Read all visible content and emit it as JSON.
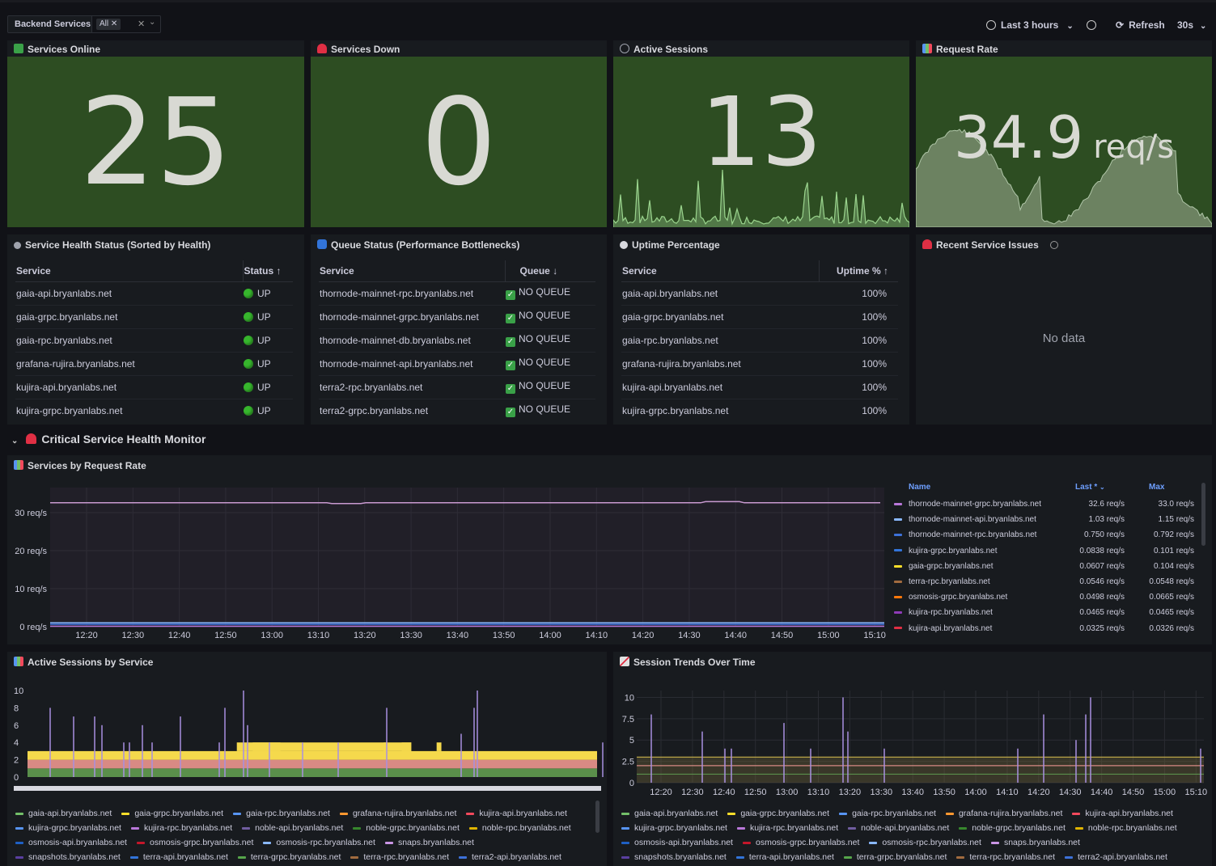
{
  "topbar": {
    "variable_label": "Backend Services",
    "variable_value": "All",
    "time_range": "Last 3 hours",
    "refresh_label": "Refresh",
    "refresh_interval": "30s"
  },
  "stats": [
    {
      "title": "Services Online",
      "value": "25",
      "unit": "",
      "icon": "check-icon",
      "icon_color": "#3aa148"
    },
    {
      "title": "Services Down",
      "value": "0",
      "unit": "",
      "icon": "siren-icon",
      "icon_color": "#e02f44"
    },
    {
      "title": "Active Sessions",
      "value": "13",
      "unit": "",
      "icon": "link-icon",
      "icon_color": "#9fa3ad"
    },
    {
      "title": "Request Rate",
      "value": "34.9",
      "unit": "req/s",
      "icon": "bar-chart-icon",
      "icon_color": "#5794f2"
    }
  ],
  "health": {
    "title": "Service Health Status (Sorted by Health)",
    "col_service": "Service",
    "col_status": "Status",
    "rows": [
      {
        "service": "gaia-api.bryanlabs.net",
        "status": "UP"
      },
      {
        "service": "gaia-grpc.bryanlabs.net",
        "status": "UP"
      },
      {
        "service": "gaia-rpc.bryanlabs.net",
        "status": "UP"
      },
      {
        "service": "grafana-rujira.bryanlabs.net",
        "status": "UP"
      },
      {
        "service": "kujira-api.bryanlabs.net",
        "status": "UP"
      },
      {
        "service": "kujira-grpc.bryanlabs.net",
        "status": "UP"
      }
    ]
  },
  "queue": {
    "title": "Queue Status (Performance Bottlenecks)",
    "col_service": "Service",
    "col_queue": "Queue",
    "rows": [
      {
        "service": "thornode-mainnet-rpc.bryanlabs.net",
        "queue": "NO QUEUE"
      },
      {
        "service": "thornode-mainnet-grpc.bryanlabs.net",
        "queue": "NO QUEUE"
      },
      {
        "service": "thornode-mainnet-db.bryanlabs.net",
        "queue": "NO QUEUE"
      },
      {
        "service": "thornode-mainnet-api.bryanlabs.net",
        "queue": "NO QUEUE"
      },
      {
        "service": "terra2-rpc.bryanlabs.net",
        "queue": "NO QUEUE"
      },
      {
        "service": "terra2-grpc.bryanlabs.net",
        "queue": "NO QUEUE"
      }
    ]
  },
  "uptime": {
    "title": "Uptime Percentage",
    "col_service": "Service",
    "col_uptime": "Uptime %",
    "rows": [
      {
        "service": "gaia-api.bryanlabs.net",
        "uptime": "100%"
      },
      {
        "service": "gaia-grpc.bryanlabs.net",
        "uptime": "100%"
      },
      {
        "service": "gaia-rpc.bryanlabs.net",
        "uptime": "100%"
      },
      {
        "service": "grafana-rujira.bryanlabs.net",
        "uptime": "100%"
      },
      {
        "service": "kujira-api.bryanlabs.net",
        "uptime": "100%"
      },
      {
        "service": "kujira-grpc.bryanlabs.net",
        "uptime": "100%"
      }
    ]
  },
  "issues": {
    "title": "Recent Service Issues",
    "empty": "No data"
  },
  "row_title": "Critical Service Health Monitor",
  "request_chart": {
    "title": "Services by Request Rate",
    "legend_headers": {
      "name": "Name",
      "last": "Last *",
      "max": "Max"
    },
    "legend": [
      {
        "name": "thornode-mainnet-grpc.bryanlabs.net",
        "last": "32.6 req/s",
        "max": "33.0 req/s",
        "color": "#b877d9"
      },
      {
        "name": "thornode-mainnet-api.bryanlabs.net",
        "last": "1.03 req/s",
        "max": "1.15 req/s",
        "color": "#8ab8ff"
      },
      {
        "name": "thornode-mainnet-rpc.bryanlabs.net",
        "last": "0.750 req/s",
        "max": "0.792 req/s",
        "color": "#3d71d9"
      },
      {
        "name": "kujira-grpc.bryanlabs.net",
        "last": "0.0838 req/s",
        "max": "0.101 req/s",
        "color": "#3274d9"
      },
      {
        "name": "gaia-grpc.bryanlabs.net",
        "last": "0.0607 req/s",
        "max": "0.104 req/s",
        "color": "#fade2a"
      },
      {
        "name": "terra-rpc.bryanlabs.net",
        "last": "0.0546 req/s",
        "max": "0.0548 req/s",
        "color": "#a16b3f"
      },
      {
        "name": "osmosis-grpc.bryanlabs.net",
        "last": "0.0498 req/s",
        "max": "0.0665 req/s",
        "color": "#ff780a"
      },
      {
        "name": "kujira-rpc.bryanlabs.net",
        "last": "0.0465 req/s",
        "max": "0.0465 req/s",
        "color": "#8f3bb8"
      },
      {
        "name": "kujira-api.bryanlabs.net",
        "last": "0.0325 req/s",
        "max": "0.0326 req/s",
        "color": "#e02f44"
      }
    ],
    "y_ticks": [
      "30 req/s",
      "20 req/s",
      "10 req/s",
      "0 req/s"
    ],
    "x_ticks": [
      "12:20",
      "12:30",
      "12:40",
      "12:50",
      "13:00",
      "13:10",
      "13:20",
      "13:30",
      "13:40",
      "13:50",
      "14:00",
      "14:10",
      "14:20",
      "14:30",
      "14:40",
      "14:50",
      "15:00",
      "15:10"
    ]
  },
  "sessions_chart": {
    "title": "Active Sessions by Service",
    "y_ticks": [
      "10",
      "8",
      "6",
      "4",
      "2",
      "0"
    ]
  },
  "trends_chart": {
    "title": "Session Trends Over Time",
    "y_ticks": [
      "10",
      "7.5",
      "5",
      "2.5",
      "0"
    ],
    "x_ticks": [
      "12:20",
      "12:30",
      "12:40",
      "12:50",
      "13:00",
      "13:10",
      "13:20",
      "13:30",
      "13:40",
      "13:50",
      "14:00",
      "14:10",
      "14:20",
      "14:30",
      "14:40",
      "14:50",
      "15:00",
      "15:10"
    ]
  },
  "series_legend": [
    {
      "name": "gaia-api.bryanlabs.net",
      "color": "#73bf69"
    },
    {
      "name": "gaia-grpc.bryanlabs.net",
      "color": "#fade2a"
    },
    {
      "name": "gaia-rpc.bryanlabs.net",
      "color": "#5794f2"
    },
    {
      "name": "grafana-rujira.bryanlabs.net",
      "color": "#ff9830"
    },
    {
      "name": "kujira-api.bryanlabs.net",
      "color": "#f2495c"
    },
    {
      "name": "kujira-grpc.bryanlabs.net",
      "color": "#5794f2"
    },
    {
      "name": "kujira-rpc.bryanlabs.net",
      "color": "#b877d9"
    },
    {
      "name": "noble-api.bryanlabs.net",
      "color": "#705da0"
    },
    {
      "name": "noble-grpc.bryanlabs.net",
      "color": "#37872d"
    },
    {
      "name": "noble-rpc.bryanlabs.net",
      "color": "#e0b400"
    },
    {
      "name": "osmosis-api.bryanlabs.net",
      "color": "#1f60c4"
    },
    {
      "name": "osmosis-grpc.bryanlabs.net",
      "color": "#c4162a"
    },
    {
      "name": "osmosis-rpc.bryanlabs.net",
      "color": "#8ab8ff"
    },
    {
      "name": "snaps.bryanlabs.net",
      "color": "#ca95e5"
    },
    {
      "name": "snapshots.bryanlabs.net",
      "color": "#5a3fa0"
    },
    {
      "name": "terra-api.bryanlabs.net",
      "color": "#3274d9"
    },
    {
      "name": "terra-grpc.bryanlabs.net",
      "color": "#56a64b"
    },
    {
      "name": "terra-rpc.bryanlabs.net",
      "color": "#a16b3f"
    },
    {
      "name": "terra2-api.bryanlabs.net",
      "color": "#3d71d9"
    }
  ]
}
